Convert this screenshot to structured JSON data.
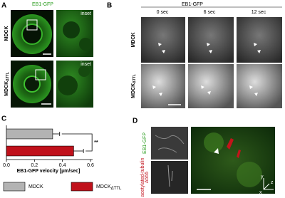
{
  "panels": {
    "A": {
      "label": "A",
      "title": "EB1-GFP",
      "rows": [
        {
          "text": "MDCK"
        },
        {
          "text": "MDCK",
          "sub": "ΔTTL"
        }
      ],
      "inset_labels": [
        "inset",
        "inset"
      ]
    },
    "B": {
      "label": "B",
      "title": "EB1-GFP",
      "columns": [
        "0 sec",
        "6 sec",
        "12 sec"
      ],
      "rows": [
        {
          "text": "MDCK"
        },
        {
          "text": "MDCK",
          "sub": "ΔTTL"
        }
      ]
    },
    "C": {
      "label": "C"
    },
    "D": {
      "label": "D",
      "channels": [
        [
          "EB1-GFP"
        ],
        [
          "acetylated-tubulin",
          "A555"
        ]
      ],
      "axes": [
        "y",
        "z",
        "x"
      ]
    }
  },
  "chart_data": {
    "type": "bar",
    "orientation": "horizontal",
    "series": [
      {
        "name": "MDCK",
        "color": "#b3b3b3",
        "values": [
          0.33
        ],
        "errors": [
          0.05
        ]
      },
      {
        "name": "MDCK",
        "name_sub": "ΔTTL",
        "color": "#c0111b",
        "values": [
          0.48
        ],
        "errors": [
          0.07
        ]
      }
    ],
    "xlabel": "EB1-GFP velocity [µm/sec]",
    "xlim": [
      0,
      0.6
    ],
    "xticks": [
      {
        "value": 0,
        "label": "0.0"
      },
      0.2,
      0.4,
      0.6
    ],
    "annotation": "**"
  }
}
